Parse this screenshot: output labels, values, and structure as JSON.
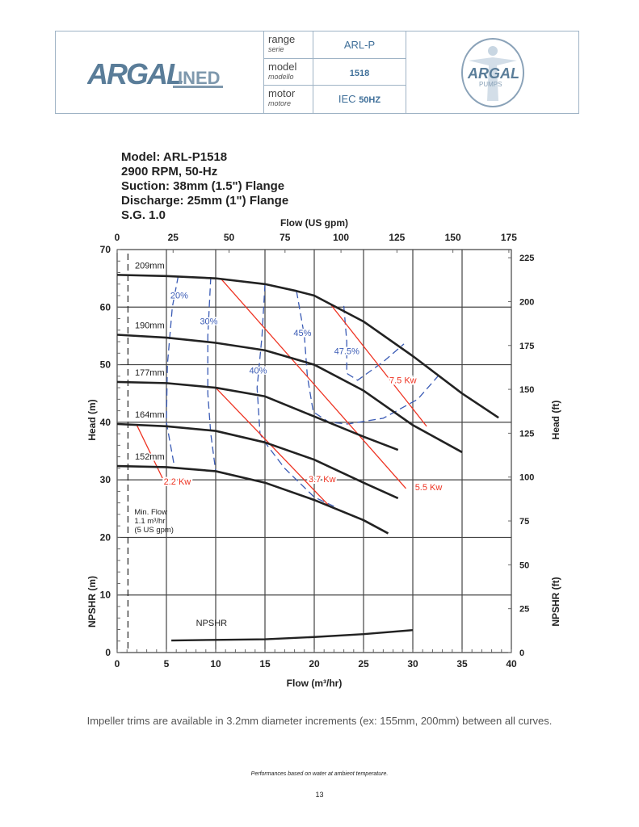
{
  "header": {
    "brand_logo": "ARGAL LINED",
    "right_logo": "ARGAL PUMPS ITALY",
    "rows": [
      {
        "label": "range",
        "label_it": "serie",
        "value": "ARL-P",
        "value_bold": ""
      },
      {
        "label": "model",
        "label_it": "modello",
        "value": "",
        "value_bold": "1518"
      },
      {
        "label": "motor",
        "label_it": "motore",
        "value": "IEC ",
        "value_bold": "50HZ"
      }
    ]
  },
  "spec": [
    "Model: ARL-P1518",
    "2900 RPM, 50-Hz",
    "Suction: 38mm (1.5\") Flange",
    "Discharge: 25mm (1\") Flange",
    "S.G. 1.0"
  ],
  "chart_data": {
    "type": "line",
    "xlabel": "Flow (m³/hr)",
    "x2label": "Flow (US gpm)",
    "ylabel": "Head (m)",
    "ylabel_lower": "NPSHR (m)",
    "y2label": "Head (ft)",
    "y2label_lower": "NPSHR (ft)",
    "xlim": [
      0,
      40
    ],
    "ylim": [
      0,
      70
    ],
    "x2lim_gpm": [
      0,
      175
    ],
    "y2lim_ft": [
      0,
      229.7
    ],
    "xticks": [
      0,
      5,
      10,
      15,
      20,
      25,
      30,
      35,
      40
    ],
    "yticks": [
      0,
      10,
      20,
      30,
      40,
      50,
      60,
      70
    ],
    "x2ticks": [
      0,
      25,
      50,
      75,
      100,
      125,
      150,
      175
    ],
    "y2ticks": [
      0,
      25,
      50,
      75,
      100,
      125,
      150,
      175,
      200,
      225
    ],
    "grid": true,
    "colors": {
      "head": "#222222",
      "efficiency": "#3a5bb5",
      "power": "#ee3322"
    },
    "head_curves": [
      {
        "name": "209mm",
        "points": [
          [
            0,
            65.6
          ],
          [
            5,
            65.4
          ],
          [
            10,
            65
          ],
          [
            15,
            64
          ],
          [
            18.2,
            62.8
          ],
          [
            20,
            62
          ],
          [
            25,
            57.5
          ],
          [
            30,
            51.5
          ],
          [
            35,
            45
          ],
          [
            38.7,
            40.8
          ]
        ]
      },
      {
        "name": "190mm",
        "points": [
          [
            0,
            55.2
          ],
          [
            5,
            54.7
          ],
          [
            10,
            53.8
          ],
          [
            15,
            52.5
          ],
          [
            20,
            50
          ],
          [
            25,
            45.5
          ],
          [
            30,
            39.5
          ],
          [
            35,
            34.8
          ]
        ]
      },
      {
        "name": "177mm",
        "points": [
          [
            0,
            47
          ],
          [
            5,
            46.8
          ],
          [
            10,
            46
          ],
          [
            15,
            44.5
          ],
          [
            20,
            41
          ],
          [
            25,
            37.5
          ],
          [
            28.5,
            35.2
          ]
        ]
      },
      {
        "name": "164mm",
        "points": [
          [
            0,
            39.7
          ],
          [
            5,
            39.3
          ],
          [
            10,
            38.5
          ],
          [
            15,
            36.5
          ],
          [
            20,
            33.5
          ],
          [
            25,
            29.5
          ],
          [
            28.5,
            26.8
          ]
        ]
      },
      {
        "name": "152mm",
        "points": [
          [
            0,
            32.4
          ],
          [
            5,
            32.2
          ],
          [
            10,
            31.5
          ],
          [
            15,
            29.5
          ],
          [
            20,
            26.5
          ],
          [
            25,
            23
          ],
          [
            27.5,
            20.7
          ]
        ]
      }
    ],
    "npshr": {
      "name": "NPSHR",
      "points": [
        [
          5.5,
          2.1
        ],
        [
          10,
          2.2
        ],
        [
          15,
          2.3
        ],
        [
          20,
          2.7
        ],
        [
          25,
          3.2
        ],
        [
          30,
          3.9
        ]
      ]
    },
    "efficiency": [
      {
        "name": "20%",
        "points": [
          [
            6.2,
            65.4
          ],
          [
            5.6,
            60
          ],
          [
            5.1,
            50
          ],
          [
            5,
            40
          ],
          [
            5.8,
            32.4
          ]
        ],
        "label_at": [
          6.3,
          61.5
        ]
      },
      {
        "name": "30%",
        "points": [
          [
            9.5,
            65.2
          ],
          [
            9.2,
            55
          ],
          [
            9.2,
            45
          ],
          [
            9.5,
            38
          ],
          [
            10,
            31.5
          ]
        ],
        "label_at": [
          9.3,
          57
        ]
      },
      {
        "name": "40%",
        "points": [
          [
            15,
            64
          ],
          [
            14.7,
            55
          ],
          [
            14.2,
            46
          ],
          [
            14.5,
            38
          ],
          [
            15,
            36.5
          ],
          [
            17,
            32
          ],
          [
            20,
            27
          ],
          [
            22,
            25.4
          ]
        ],
        "label_at": [
          14.3,
          48.5
        ]
      },
      {
        "name": "45%",
        "points": [
          [
            18.2,
            62.8
          ],
          [
            19,
            55
          ],
          [
            19.3,
            48
          ],
          [
            19.9,
            41.8
          ],
          [
            21.5,
            40
          ],
          [
            23.4,
            39.7
          ],
          [
            27,
            40.7
          ],
          [
            30.5,
            44
          ],
          [
            32.6,
            48.1
          ]
        ],
        "label_at": [
          18.8,
          55
        ]
      },
      {
        "name": "47.5%",
        "points": [
          [
            23,
            60.2
          ],
          [
            23.3,
            54
          ],
          [
            23.3,
            48.5
          ],
          [
            24.4,
            47.3
          ],
          [
            27,
            50.5
          ],
          [
            29.1,
            53.6
          ]
        ],
        "label_at": [
          23.3,
          51.8
        ]
      }
    ],
    "power": [
      {
        "name": "2.2 Kw",
        "points": [
          [
            2,
            39.5
          ],
          [
            4.6,
            30.3
          ]
        ],
        "label_at": [
          6.1,
          29.2
        ]
      },
      {
        "name": "3.7 Kw",
        "points": [
          [
            10,
            46
          ],
          [
            21.5,
            25.5
          ]
        ],
        "label_at": [
          20.8,
          29.6
        ]
      },
      {
        "name": "5.5 Kw",
        "points": [
          [
            10.5,
            65
          ],
          [
            29.3,
            28.5
          ]
        ],
        "label_at": [
          31.6,
          28.2
        ]
      },
      {
        "name": "7.5 Kw",
        "points": [
          [
            21.6,
            60.6
          ],
          [
            31.4,
            39.3
          ]
        ],
        "label_at": [
          29,
          46.8
        ]
      }
    ],
    "min_flow": {
      "x": 1.1,
      "label": [
        "Min. Flow",
        "1.1 m³/hr",
        "(5 US gpm)"
      ]
    }
  },
  "note": "Impeller trims are available in 3.2mm diameter increments (ex: 155mm, 200mm) between all curves.",
  "performance_note": "Performances based on water at ambient temperature.",
  "page_number": "13"
}
